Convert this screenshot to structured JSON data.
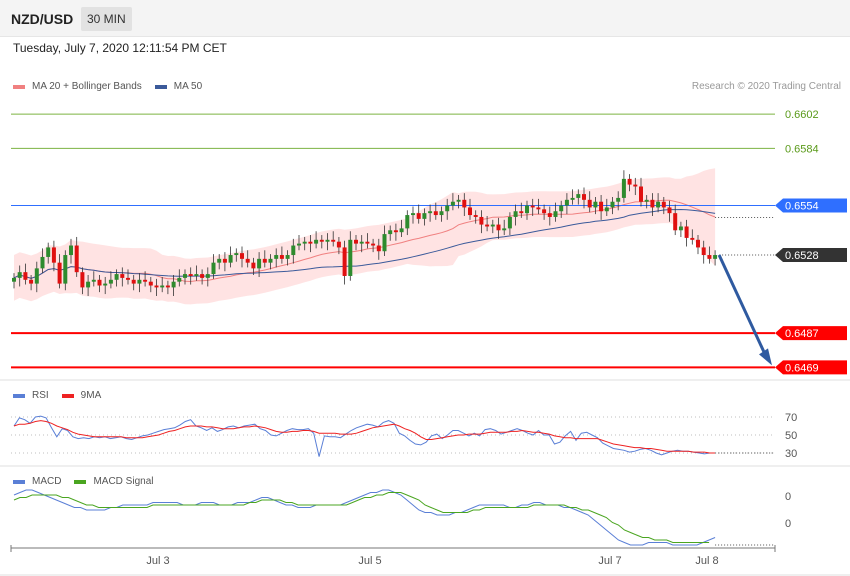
{
  "header": {
    "symbol": "NZD/USD",
    "timeframe": "30 MIN",
    "datetime": "Tuesday, July 7, 2020 12:11:54 PM CET"
  },
  "copyright": "Research © 2020 Trading Central",
  "colors": {
    "bullish": "#2e8b2e",
    "bearish": "#e01010",
    "ma50": "#3b5a9a",
    "bands": "#ffdede",
    "support": "#ff0000",
    "resistance": "#7cb342",
    "pivot": "#2f6fff",
    "arrow": "#2f5aa0"
  },
  "chart_data": [
    {
      "type": "candlestick",
      "legend": [
        {
          "name": "MA 20 + Bollinger Bands",
          "color": "#f08080"
        },
        {
          "name": "MA 50",
          "color": "#3b5a9a"
        }
      ],
      "x_ticks": [
        "Jul 3",
        "Jul 5",
        "Jul 7",
        "Jul 8"
      ],
      "ylim": [
        0.6465,
        0.6611
      ],
      "levels": [
        {
          "value": 0.6602,
          "label": "0.6602",
          "kind": "resistance"
        },
        {
          "value": 0.6584,
          "label": "0.6584",
          "kind": "resistance"
        },
        {
          "value": 0.6554,
          "label": "0.6554",
          "kind": "pivot"
        },
        {
          "value": 0.6487,
          "label": "0.6487",
          "kind": "support"
        },
        {
          "value": 0.6469,
          "label": "0.6469",
          "kind": "support"
        }
      ],
      "last_price": {
        "value": 0.6528,
        "label": "0.6528"
      },
      "forecast_arrow": {
        "from": 0.6528,
        "to": 0.6469
      },
      "closes": [
        0.6516,
        0.6519,
        0.6515,
        0.6513,
        0.6521,
        0.6527,
        0.6532,
        0.6524,
        0.6513,
        0.6528,
        0.6533,
        0.6519,
        0.6511,
        0.6514,
        0.6515,
        0.6512,
        0.6513,
        0.6515,
        0.6518,
        0.6516,
        0.6515,
        0.6513,
        0.6515,
        0.6514,
        0.6512,
        0.6511,
        0.6512,
        0.6511,
        0.6514,
        0.6516,
        0.6518,
        0.6517,
        0.6518,
        0.6516,
        0.6518,
        0.6524,
        0.6526,
        0.6524,
        0.6528,
        0.6529,
        0.6526,
        0.6524,
        0.6521,
        0.6526,
        0.6524,
        0.6526,
        0.6528,
        0.6526,
        0.6528,
        0.6533,
        0.6534,
        0.6535,
        0.6534,
        0.6536,
        0.6535,
        0.6536,
        0.6535,
        0.6532,
        0.6517,
        0.6536,
        0.6534,
        0.6535,
        0.6534,
        0.6533,
        0.653,
        0.6539,
        0.6541,
        0.654,
        0.6542,
        0.6549,
        0.655,
        0.6547,
        0.655,
        0.6551,
        0.6549,
        0.6551,
        0.6554,
        0.6556,
        0.6557,
        0.6553,
        0.6549,
        0.6548,
        0.6544,
        0.6543,
        0.6544,
        0.6541,
        0.6542,
        0.6548,
        0.6551,
        0.655,
        0.6554,
        0.6553,
        0.6552,
        0.655,
        0.6548,
        0.6551,
        0.6554,
        0.6557,
        0.6558,
        0.656,
        0.6557,
        0.6553,
        0.6556,
        0.6551,
        0.6553,
        0.6556,
        0.6558,
        0.6568,
        0.6565,
        0.6564,
        0.6556,
        0.6557,
        0.6553,
        0.6556,
        0.6553,
        0.655,
        0.6541,
        0.6543,
        0.6537,
        0.6536,
        0.6532,
        0.6528,
        0.6526,
        0.6528
      ],
      "panels": [
        {
          "name": "RSI",
          "legend": [
            {
              "name": "RSI",
              "color": "#5a7fd6"
            },
            {
              "name": "9MA",
              "color": "#ee2222"
            }
          ],
          "ticks": [
            "70",
            "50",
            "30"
          ],
          "ylim": [
            20,
            80
          ],
          "rsi": [
            60,
            69,
            67,
            63,
            70,
            71,
            69,
            58,
            48,
            57,
            55,
            48,
            46,
            47,
            46,
            48,
            47,
            48,
            46,
            47,
            48,
            46,
            45,
            47,
            49,
            50,
            52,
            54,
            56,
            57,
            58,
            61,
            65,
            67,
            60,
            58,
            55,
            58,
            54,
            56,
            59,
            60,
            58,
            60,
            61,
            62,
            57,
            55,
            50,
            49,
            52,
            55,
            57,
            56,
            56,
            57,
            52,
            26,
            49,
            48,
            48,
            47,
            51,
            55,
            58,
            60,
            62,
            61,
            59,
            64,
            66,
            63,
            52,
            49,
            44,
            40,
            39,
            42,
            49,
            51,
            46,
            50,
            55,
            55,
            52,
            49,
            52,
            49,
            56,
            57,
            55,
            51,
            53,
            55,
            57,
            55,
            52,
            50,
            55,
            50,
            50,
            40,
            42,
            49,
            54,
            44,
            52,
            53,
            50,
            47,
            41,
            38,
            35,
            34,
            33,
            31,
            32,
            34,
            35,
            33,
            30,
            28,
            30,
            32,
            33,
            32,
            32,
            31,
            30,
            29,
            30,
            30
          ],
          "ma9": [
            60,
            62,
            62,
            63,
            65,
            66,
            65,
            63,
            60,
            58,
            56,
            53,
            51,
            50,
            49,
            48,
            48,
            48,
            48,
            48,
            48,
            47,
            47,
            47,
            47,
            48,
            49,
            50,
            52,
            54,
            55,
            57,
            59,
            60,
            60,
            60,
            59,
            59,
            58,
            57,
            57,
            57,
            58,
            59,
            59,
            60,
            59,
            58,
            56,
            54,
            53,
            53,
            54,
            54,
            55,
            55,
            54,
            52,
            52,
            52,
            52,
            51,
            51,
            51,
            52,
            54,
            56,
            58,
            59,
            60,
            61,
            62,
            60,
            57,
            55,
            52,
            48,
            45,
            45,
            46,
            47,
            48,
            49,
            50,
            50,
            51,
            51,
            51,
            52,
            53,
            53,
            53,
            53,
            54,
            54,
            55,
            54,
            53,
            53,
            52,
            51,
            49,
            48,
            47,
            47,
            46,
            46,
            46,
            46,
            46,
            44,
            42,
            40,
            39,
            38,
            37,
            36,
            36,
            35,
            35,
            34,
            33,
            32,
            32,
            32,
            32,
            32,
            31,
            31,
            31,
            30,
            30
          ]
        },
        {
          "name": "MACD",
          "legend": [
            {
              "name": "MACD",
              "color": "#5a7fd6"
            },
            {
              "name": "MACD Signal",
              "color": "#4aa520"
            }
          ],
          "ticks": [
            "0",
            "0"
          ],
          "macd": [
            2,
            3,
            4,
            4,
            3,
            2,
            1,
            0,
            -1,
            -2,
            -3,
            -3,
            -4,
            -4,
            -4,
            -4,
            -3,
            -3,
            -2,
            -2,
            -2,
            -2,
            -2,
            -1,
            -1,
            -1,
            -1,
            -1,
            -2,
            -2,
            -2,
            -1,
            -1,
            -1,
            -2,
            -2,
            -2,
            -1,
            -1,
            -1,
            0,
            1,
            1,
            0,
            -1,
            -2,
            -2,
            -3,
            -3,
            -3,
            -2,
            -2,
            -2,
            -2,
            -2,
            -1,
            0,
            1,
            2,
            3,
            3,
            4,
            4,
            3,
            2,
            0,
            -2,
            -4,
            -5,
            -5,
            -6,
            -6,
            -6,
            -5,
            -5,
            -4,
            -3,
            -2,
            -2,
            -2,
            -2,
            -2,
            -3,
            -3,
            -2,
            -2,
            -1,
            -1,
            -2,
            -2,
            -2,
            -3,
            -3,
            -4,
            -5,
            -6,
            -8,
            -10,
            -12,
            -14,
            -16,
            -17,
            -18,
            -18,
            -18,
            -17,
            -17,
            -17,
            -17,
            -18,
            -18,
            -18,
            -18,
            -18,
            -17,
            -16,
            -15
          ],
          "signal": [
            0,
            1,
            1,
            2,
            2,
            2,
            2,
            2,
            1,
            1,
            0,
            -1,
            -2,
            -2,
            -3,
            -3,
            -3,
            -3,
            -3,
            -3,
            -3,
            -3,
            -3,
            -2,
            -2,
            -2,
            -2,
            -2,
            -2,
            -2,
            -2,
            -2,
            -2,
            -2,
            -2,
            -2,
            -2,
            -2,
            -2,
            -1,
            -1,
            0,
            0,
            0,
            0,
            -1,
            -1,
            -2,
            -2,
            -2,
            -2,
            -2,
            -2,
            -2,
            -2,
            -2,
            -1,
            0,
            1,
            1,
            2,
            2,
            3,
            3,
            3,
            2,
            1,
            0,
            -2,
            -3,
            -4,
            -5,
            -5,
            -5,
            -5,
            -5,
            -4,
            -4,
            -3,
            -3,
            -3,
            -3,
            -3,
            -3,
            -3,
            -3,
            -2,
            -2,
            -2,
            -2,
            -2,
            -2,
            -3,
            -3,
            -4,
            -4,
            -5,
            -6,
            -7,
            -9,
            -10,
            -12,
            -13,
            -14,
            -15,
            -15,
            -16,
            -16,
            -16,
            -17,
            -17,
            -17,
            -17,
            -17,
            -17,
            -17
          ]
        }
      ]
    }
  ]
}
